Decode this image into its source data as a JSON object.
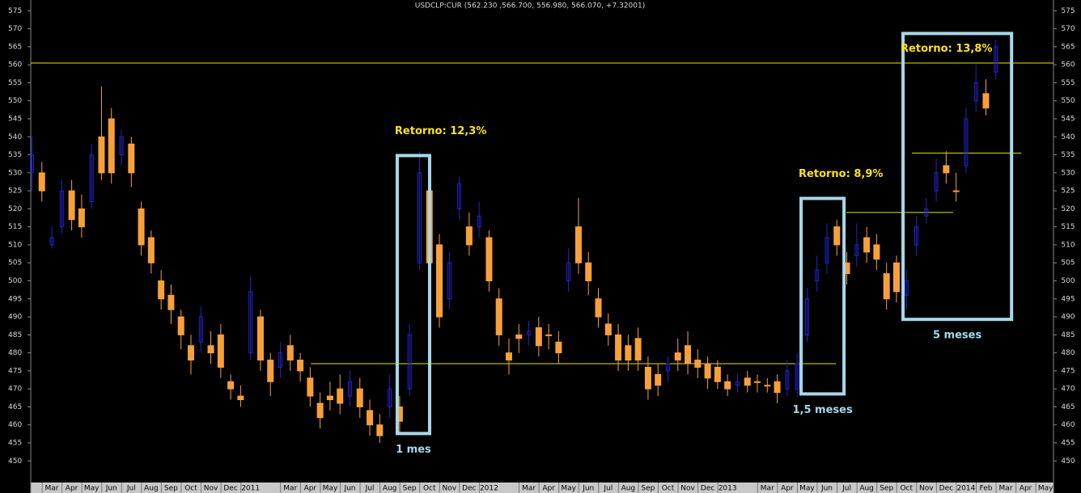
{
  "chart_data": {
    "type": "candlestick",
    "title": "USDCLP:CUR (562.230 ,566.700, 556.980, 566.070, +7.32001)",
    "x": [
      1,
      1.5,
      2,
      2.5,
      3,
      3.5,
      4,
      4.5,
      5,
      5.5,
      6,
      6.5,
      7,
      7.5,
      8,
      8.5,
      9,
      9.5,
      10,
      10.5,
      11,
      11.5,
      12,
      12.5,
      13,
      13.5,
      14,
      14.5,
      15,
      15.5,
      16,
      16.5,
      17,
      17.5,
      18,
      18.5,
      19,
      19.5,
      20,
      20.5,
      21,
      21.5,
      22,
      22.5,
      23,
      23.5,
      24,
      24.5,
      25,
      25.5,
      26,
      26.5,
      27,
      27.5,
      28,
      28.5,
      29,
      29.5,
      30,
      30.5,
      31,
      31.5,
      32,
      32.5,
      33,
      33.5,
      34,
      34.5,
      35,
      35.5,
      36,
      36.5,
      37,
      37.5,
      38,
      38.5,
      39,
      39.5,
      40,
      40.5,
      41,
      41.5,
      42,
      42.5,
      43,
      43.5,
      44,
      44.5,
      45,
      45.5,
      46,
      46.5,
      47,
      47.5,
      48,
      48.5,
      49,
      49.5
    ],
    "open": [
      530,
      530,
      510,
      515,
      525,
      520,
      522,
      540,
      545,
      535,
      538,
      520,
      512,
      500,
      496,
      490,
      482,
      483,
      482,
      485,
      472,
      468,
      480,
      490,
      478,
      476,
      482,
      478,
      473,
      466,
      468,
      470,
      468,
      470,
      464,
      460,
      465,
      465,
      470,
      505,
      525,
      510,
      495,
      520,
      515,
      515,
      512,
      495,
      480,
      485,
      485,
      487,
      485,
      483,
      500,
      515,
      505,
      495,
      488,
      485,
      482,
      484,
      476,
      474,
      475,
      480,
      482,
      478,
      477,
      476,
      472,
      471,
      473,
      472,
      471,
      472,
      470,
      470,
      485,
      500,
      505,
      515,
      505,
      507,
      512,
      510,
      502,
      505,
      496,
      510,
      518,
      525,
      532,
      525,
      532,
      550,
      552,
      558
    ],
    "high": [
      540,
      533,
      515,
      528,
      528,
      524,
      538,
      554,
      548,
      542,
      540,
      522,
      514,
      503,
      499,
      492,
      485,
      493,
      486,
      488,
      474,
      471,
      501,
      492,
      480,
      483,
      485,
      480,
      476,
      469,
      472,
      474,
      475,
      473,
      467,
      463,
      474,
      468,
      488,
      536,
      530,
      513,
      508,
      529,
      519,
      522,
      514,
      498,
      484,
      488,
      489,
      490,
      488,
      486,
      509,
      523,
      508,
      498,
      491,
      488,
      485,
      487,
      479,
      477,
      479,
      484,
      486,
      481,
      479,
      478,
      474,
      474,
      475,
      474,
      473,
      474,
      478,
      480,
      498,
      507,
      516,
      517,
      508,
      516,
      515,
      513,
      505,
      507,
      503,
      518,
      523,
      534,
      536,
      530,
      548,
      560,
      556,
      567
    ],
    "low": [
      525,
      522,
      509,
      513,
      514,
      512,
      520,
      528,
      527,
      532,
      526,
      507,
      502,
      492,
      488,
      481,
      474,
      480,
      477,
      473,
      467,
      465,
      478,
      475,
      468,
      473,
      475,
      472,
      465,
      459,
      464,
      463,
      465,
      462,
      457,
      455,
      462,
      458,
      468,
      503,
      502,
      487,
      492,
      517,
      507,
      512,
      497,
      482,
      474,
      480,
      482,
      479,
      481,
      477,
      497,
      502,
      496,
      487,
      482,
      475,
      475,
      475,
      467,
      468,
      472,
      475,
      474,
      473,
      470,
      470,
      468,
      469,
      469,
      469,
      469,
      466,
      468,
      468,
      483,
      497,
      502,
      507,
      499,
      504,
      505,
      503,
      492,
      494,
      492,
      507,
      516,
      522,
      527,
      522,
      530,
      547,
      546,
      556
    ],
    "close": [
      535,
      525,
      512,
      525,
      517,
      515,
      535,
      530,
      530,
      540,
      530,
      510,
      505,
      495,
      492,
      485,
      478,
      490,
      480,
      476,
      470,
      467,
      497,
      478,
      472,
      480,
      478,
      475,
      468,
      462,
      467,
      466,
      472,
      465,
      460,
      457,
      470,
      461,
      485,
      530,
      505,
      490,
      505,
      527,
      510,
      518,
      500,
      485,
      478,
      484,
      486,
      482,
      485,
      480,
      505,
      505,
      500,
      490,
      485,
      478,
      478,
      478,
      470,
      471,
      477,
      478,
      477,
      476,
      473,
      472,
      470,
      472,
      471,
      472,
      471,
      469,
      475,
      477,
      495,
      503,
      512,
      510,
      502,
      510,
      508,
      506,
      495,
      497,
      500,
      515,
      520,
      530,
      530,
      525,
      545,
      555,
      548,
      565
    ],
    "up_color": "#2424d0",
    "down_color": "#f7a03a",
    "xlim": [
      0.94,
      52.4
    ],
    "ylim": [
      444,
      578
    ],
    "xticks": [
      {
        "value": 2,
        "label": "Mar"
      },
      {
        "value": 3,
        "label": "Apr"
      },
      {
        "value": 4,
        "label": "May"
      },
      {
        "value": 5,
        "label": "Jun"
      },
      {
        "value": 6,
        "label": "Jul"
      },
      {
        "value": 7,
        "label": "Aug"
      },
      {
        "value": 8,
        "label": "Sep"
      },
      {
        "value": 9,
        "label": "Oct"
      },
      {
        "value": 10,
        "label": "Nov"
      },
      {
        "value": 11,
        "label": "Dec"
      },
      {
        "value": 12,
        "label": "2011"
      },
      {
        "value": 14,
        "label": "Mar"
      },
      {
        "value": 15,
        "label": "Apr"
      },
      {
        "value": 16,
        "label": "May"
      },
      {
        "value": 17,
        "label": "Jun"
      },
      {
        "value": 18,
        "label": "Jul"
      },
      {
        "value": 19,
        "label": "Aug"
      },
      {
        "value": 20,
        "label": "Sep"
      },
      {
        "value": 21,
        "label": "Oct"
      },
      {
        "value": 22,
        "label": "Nov"
      },
      {
        "value": 23,
        "label": "Dec"
      },
      {
        "value": 24,
        "label": "2012"
      },
      {
        "value": 26,
        "label": "Mar"
      },
      {
        "value": 27,
        "label": "Apr"
      },
      {
        "value": 28,
        "label": "May"
      },
      {
        "value": 29,
        "label": "Jun"
      },
      {
        "value": 30,
        "label": "Jul"
      },
      {
        "value": 31,
        "label": "Aug"
      },
      {
        "value": 32,
        "label": "Sep"
      },
      {
        "value": 33,
        "label": "Oct"
      },
      {
        "value": 34,
        "label": "Nov"
      },
      {
        "value": 35,
        "label": "Dec"
      },
      {
        "value": 36,
        "label": "2013"
      },
      {
        "value": 38,
        "label": "Mar"
      },
      {
        "value": 39,
        "label": "Apr"
      },
      {
        "value": 40,
        "label": "May"
      },
      {
        "value": 41,
        "label": "Jun"
      },
      {
        "value": 42,
        "label": "Jul"
      },
      {
        "value": 43,
        "label": "Aug"
      },
      {
        "value": 44,
        "label": "Sep"
      },
      {
        "value": 45,
        "label": "Oct"
      },
      {
        "value": 46,
        "label": "Nov"
      },
      {
        "value": 47,
        "label": "Dec"
      },
      {
        "value": 48,
        "label": "2014"
      },
      {
        "value": 49,
        "label": "Feb"
      },
      {
        "value": 50,
        "label": "Mar"
      },
      {
        "value": 51,
        "label": "Apr"
      },
      {
        "value": 52,
        "label": "May"
      }
    ],
    "yticks": [
      450,
      455,
      460,
      465,
      470,
      475,
      480,
      485,
      490,
      495,
      500,
      505,
      510,
      515,
      520,
      525,
      530,
      535,
      540,
      545,
      550,
      555,
      560,
      565,
      570,
      575
    ],
    "reference_lines": [
      {
        "value": 560.5
      },
      {
        "value": 477,
        "x_range": [
          15.03,
          41.45
        ]
      },
      {
        "value": 519,
        "x_range": [
          41.98,
          47.35
        ]
      },
      {
        "value": 535.5,
        "x_range": [
          45.28,
          50.78
        ]
      }
    ],
    "reference_color": "#e6e600",
    "annotations": [
      {
        "x_range": [
          19.38,
          21.01
        ],
        "y_range": [
          534.8,
          457.6
        ],
        "label": "1 mes",
        "return_label": "Retorno: 12,3%"
      },
      {
        "x_range": [
          39.7,
          41.86
        ],
        "y_range": [
          522.9,
          468.6
        ],
        "label": "1,5 meses",
        "return_label": "Retorno: 8,9%"
      },
      {
        "x_range": [
          44.83,
          50.29
        ],
        "y_range": [
          568.7,
          489.3
        ],
        "label": "5 meses",
        "return_label": "Retorno: 13,8%"
      }
    ],
    "box_color": "#a8d8ea",
    "return_color": "#ffe21a"
  }
}
